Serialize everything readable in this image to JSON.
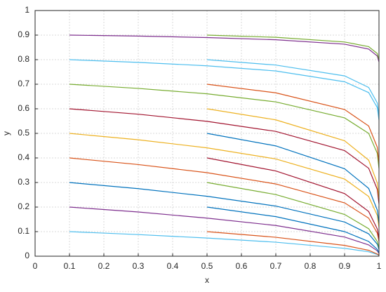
{
  "chart_data": {
    "type": "line",
    "xlabel": "x",
    "ylabel": "y",
    "xlim": [
      0,
      1
    ],
    "ylim": [
      0,
      1
    ],
    "xticks": [
      0,
      0.1,
      0.2,
      0.3,
      0.4,
      0.5,
      0.6,
      0.7,
      0.8,
      0.9,
      1
    ],
    "yticks": [
      0,
      0.1,
      0.2,
      0.3,
      0.4,
      0.5,
      0.6,
      0.7,
      0.8,
      0.9,
      1
    ],
    "grid": true,
    "series": [
      {
        "color": "#4dbeee",
        "x": [
          0.1,
          0.3,
          0.5,
          0.7,
          0.9,
          0.97,
          0.995,
          1
        ],
        "values": [
          0.1,
          0.088,
          0.074,
          0.057,
          0.032,
          0.018,
          0.007,
          0.003
        ]
      },
      {
        "color": "#7e2f8e",
        "x": [
          0.1,
          0.3,
          0.5,
          0.7,
          0.9,
          0.97,
          0.995,
          1
        ],
        "values": [
          0.2,
          0.18,
          0.155,
          0.125,
          0.078,
          0.046,
          0.022,
          0.011
        ]
      },
      {
        "color": "#0072bd",
        "x": [
          0.1,
          0.3,
          0.5,
          0.7,
          0.9,
          0.97,
          0.995,
          1
        ],
        "values": [
          0.3,
          0.275,
          0.244,
          0.204,
          0.139,
          0.091,
          0.049,
          0.028
        ]
      },
      {
        "color": "#d95319",
        "x": [
          0.1,
          0.3,
          0.5,
          0.7,
          0.9,
          0.97,
          0.995,
          1
        ],
        "values": [
          0.4,
          0.373,
          0.34,
          0.294,
          0.217,
          0.155,
          0.094,
          0.06
        ]
      },
      {
        "color": "#edb120",
        "x": [
          0.1,
          0.3,
          0.5,
          0.7,
          0.9,
          0.97,
          0.995,
          1
        ],
        "values": [
          0.5,
          0.474,
          0.441,
          0.396,
          0.314,
          0.243,
          0.166,
          0.118
        ]
      },
      {
        "color": "#a2142f",
        "x": [
          0.1,
          0.3,
          0.5,
          0.7,
          0.9,
          0.97,
          0.995,
          1
        ],
        "values": [
          0.6,
          0.578,
          0.549,
          0.508,
          0.43,
          0.358,
          0.272,
          0.213
        ]
      },
      {
        "color": "#77ac30",
        "x": [
          0.1,
          0.3,
          0.5,
          0.7,
          0.9,
          0.97,
          0.995,
          1
        ],
        "values": [
          0.7,
          0.683,
          0.661,
          0.628,
          0.563,
          0.5,
          0.419,
          0.357
        ]
      },
      {
        "color": "#4dbeee",
        "x": [
          0.1,
          0.3,
          0.5,
          0.7,
          0.9,
          0.97,
          0.995,
          1
        ],
        "values": [
          0.8,
          0.789,
          0.775,
          0.754,
          0.71,
          0.666,
          0.605,
          0.554
        ]
      },
      {
        "color": "#7e2f8e",
        "x": [
          0.1,
          0.3,
          0.5,
          0.7,
          0.9,
          0.97,
          0.995,
          1
        ],
        "values": [
          0.9,
          0.896,
          0.89,
          0.881,
          0.863,
          0.843,
          0.815,
          0.791
        ]
      },
      {
        "color": "#d95319",
        "x": [
          0.5,
          0.7,
          0.9,
          0.97,
          0.995,
          1
        ],
        "values": [
          0.1,
          0.077,
          0.044,
          0.024,
          0.009,
          0.004
        ]
      },
      {
        "color": "#0072bd",
        "x": [
          0.5,
          0.7,
          0.9,
          0.97,
          0.995,
          1
        ],
        "values": [
          0.2,
          0.161,
          0.1,
          0.06,
          0.028,
          0.014
        ]
      },
      {
        "color": "#77ac30",
        "x": [
          0.5,
          0.7,
          0.9,
          0.97,
          0.995,
          1
        ],
        "values": [
          0.3,
          0.251,
          0.17,
          0.112,
          0.06,
          0.034
        ]
      },
      {
        "color": "#a2142f",
        "x": [
          0.5,
          0.7,
          0.9,
          0.97,
          0.995,
          1
        ],
        "values": [
          0.4,
          0.347,
          0.255,
          0.182,
          0.111,
          0.071
        ]
      },
      {
        "color": "#0072bd",
        "x": [
          0.5,
          0.7,
          0.9,
          0.97,
          0.995,
          1
        ],
        "values": [
          0.5,
          0.449,
          0.356,
          0.276,
          0.188,
          0.134
        ]
      },
      {
        "color": "#edb120",
        "x": [
          0.5,
          0.7,
          0.9,
          0.97,
          0.995,
          1
        ],
        "values": [
          0.6,
          0.555,
          0.47,
          0.391,
          0.298,
          0.233
        ]
      },
      {
        "color": "#d95319",
        "x": [
          0.5,
          0.7,
          0.9,
          0.97,
          0.995,
          1
        ],
        "values": [
          0.7,
          0.665,
          0.597,
          0.53,
          0.444,
          0.379
        ]
      },
      {
        "color": "#4dbeee",
        "x": [
          0.5,
          0.7,
          0.9,
          0.97,
          0.995,
          1
        ],
        "values": [
          0.8,
          0.778,
          0.734,
          0.687,
          0.624,
          0.572
        ]
      },
      {
        "color": "#77ac30",
        "x": [
          0.5,
          0.7,
          0.9,
          0.97,
          0.995,
          1
        ],
        "values": [
          0.9,
          0.891,
          0.872,
          0.853,
          0.825,
          0.8
        ]
      }
    ]
  }
}
